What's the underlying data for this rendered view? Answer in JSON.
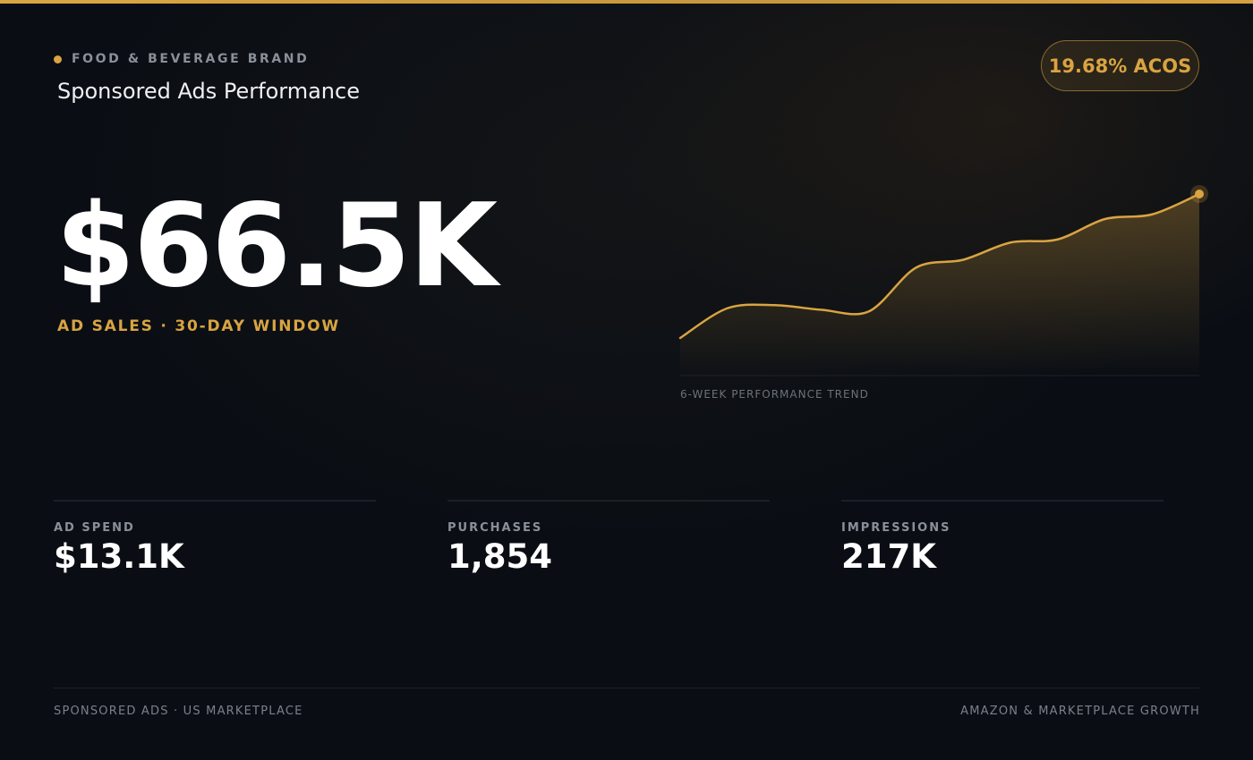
{
  "header": {
    "brand": "FOOD & BEVERAGE BRAND",
    "title": "Sponsored Ads Performance",
    "badge": "19.68% ACOS"
  },
  "hero": {
    "value": "$66.5K",
    "caption": "AD SALES · 30-DAY WINDOW"
  },
  "chart_data": {
    "type": "area",
    "title": "",
    "caption": "6-WEEK PERFORMANCE TREND",
    "x": [
      1,
      2,
      3,
      4,
      5,
      6,
      7,
      8,
      9,
      10,
      11,
      12
    ],
    "values": [
      8,
      27,
      29,
      26,
      25,
      53,
      58,
      69,
      71,
      84,
      87,
      100
    ],
    "ylim": [
      0,
      100
    ],
    "grid": false,
    "colors": {
      "line": "#d9a441",
      "fill": "#d9a441",
      "baseline": "#1d232c"
    }
  },
  "metrics": [
    {
      "label": "AD SPEND",
      "value": "$13.1K"
    },
    {
      "label": "PURCHASES",
      "value": "1,854"
    },
    {
      "label": "IMPRESSIONS",
      "value": "217K"
    }
  ],
  "footer": {
    "left": "SPONSORED ADS · US MARKETPLACE",
    "right": "AMAZON & MARKETPLACE GROWTH"
  },
  "colors": {
    "accent": "#d9a441",
    "background": "#0a0e14",
    "muted_text": "#8a9099"
  }
}
